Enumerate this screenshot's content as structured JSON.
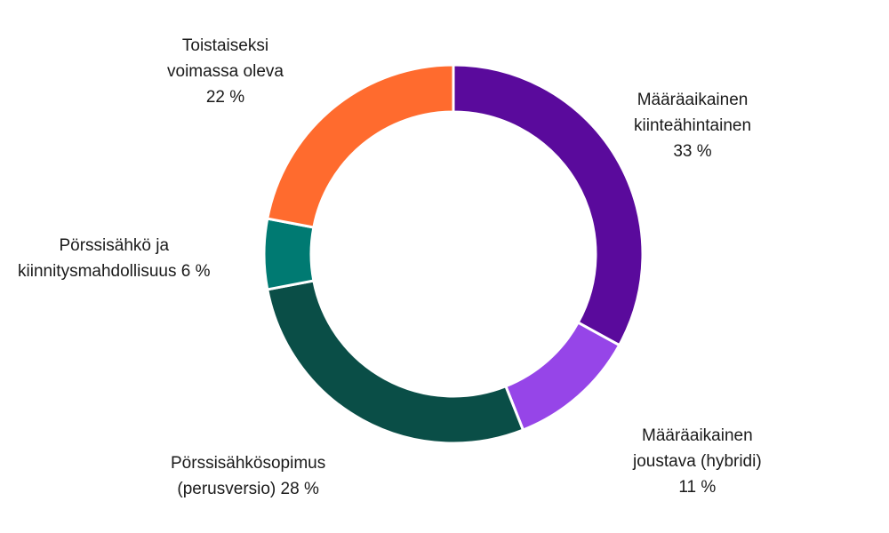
{
  "chart_data": {
    "type": "pie",
    "variant": "donut",
    "title": "",
    "start": "top",
    "direction": "clockwise",
    "slices": [
      {
        "name": "Määräaikainen kiinteähintainen",
        "value": 33,
        "color": "#5a0a9c",
        "label_lines": [
          "Määräaikainen",
          "kiinteähintainen",
          "33 %"
        ]
      },
      {
        "name": "Määräaikainen joustava (hybridi)",
        "value": 11,
        "color": "#9645e8",
        "label_lines": [
          "Määräaikainen",
          "joustava (hybridi)",
          "11 %"
        ]
      },
      {
        "name": "Pörssisähkösopimus (perusversio)",
        "value": 28,
        "color": "#0a4e47",
        "label_lines": [
          "Pörssisähkösopimus",
          "(perusversio) 28 %"
        ]
      },
      {
        "name": "Pörssisähkö ja kiinnitysmahdollisuus",
        "value": 6,
        "color": "#007a72",
        "label_lines": [
          "Pörssisähkö ja",
          "kiinnitysmahdollisuus 6 %"
        ]
      },
      {
        "name": "Toistaiseksi voimassa oleva",
        "value": 22,
        "color": "#ff6b2e",
        "label_lines": [
          "Toistaiseksi",
          "voimassa oleva",
          "22 %"
        ]
      }
    ]
  }
}
